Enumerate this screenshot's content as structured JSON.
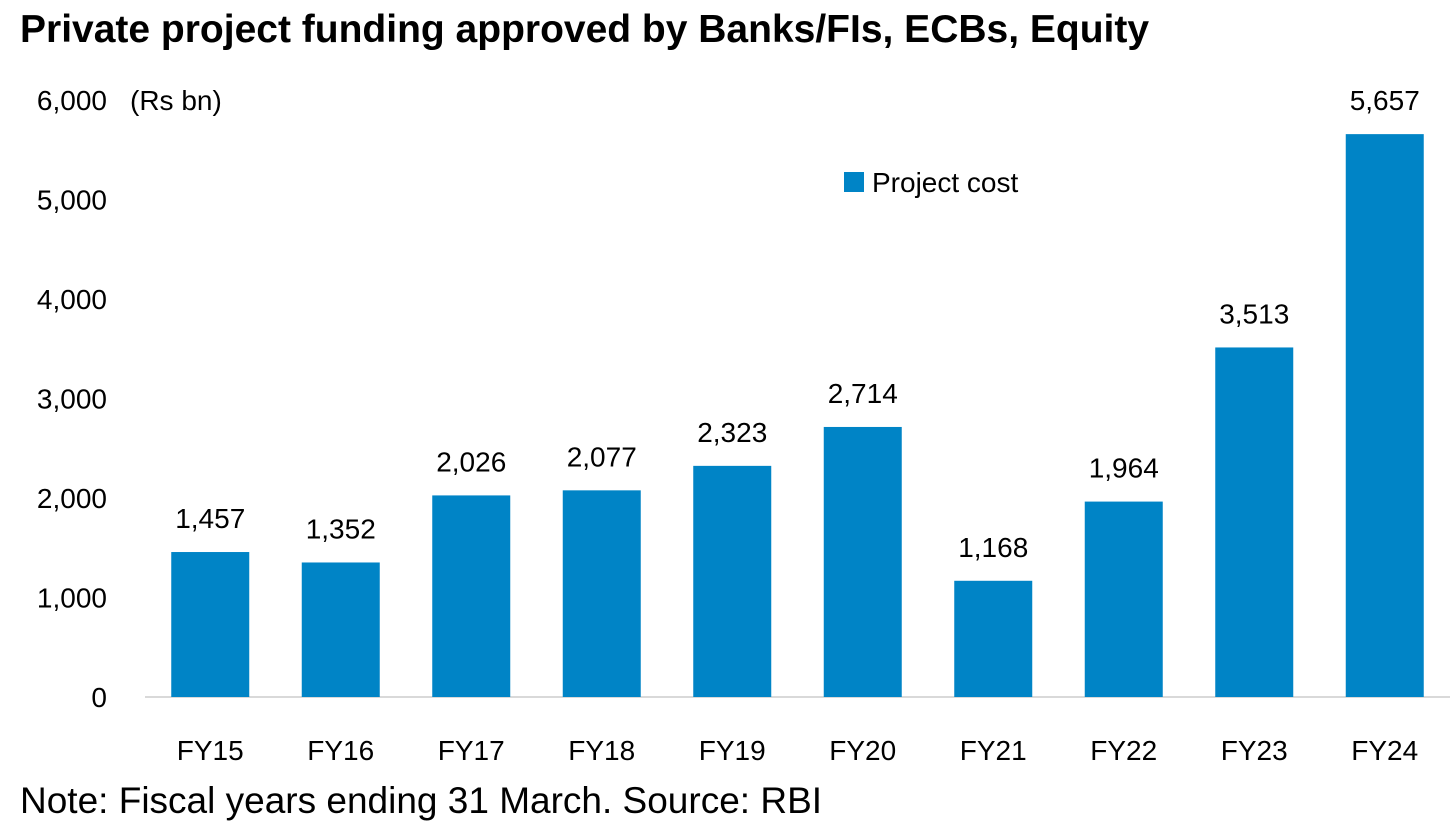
{
  "chart_data": {
    "type": "bar",
    "title": "Private project funding approved by Banks/FIs, ECBs, Equity",
    "unit_label": "(Rs bn)",
    "note": "Note: Fiscal years ending 31 March. Source: RBI",
    "categories": [
      "FY15",
      "FY16",
      "FY17",
      "FY18",
      "FY19",
      "FY20",
      "FY21",
      "FY22",
      "FY23",
      "FY24"
    ],
    "series": [
      {
        "name": "Project cost",
        "color": "#0084C6",
        "values": [
          1457,
          1352,
          2026,
          2077,
          2323,
          2714,
          1168,
          1964,
          3513,
          5657
        ],
        "labels": [
          "1,457",
          "1,352",
          "2,026",
          "2,077",
          "2,323",
          "2,714",
          "1,168",
          "1,964",
          "3,513",
          "5,657"
        ]
      }
    ],
    "ylim": [
      0,
      6000
    ],
    "yticks": [
      0,
      1000,
      2000,
      3000,
      4000,
      5000,
      6000
    ],
    "ytick_labels": [
      "0",
      "1,000",
      "2,000",
      "3,000",
      "4,000",
      "5,000",
      "6,000"
    ],
    "grid": false,
    "legend": "top-right"
  }
}
